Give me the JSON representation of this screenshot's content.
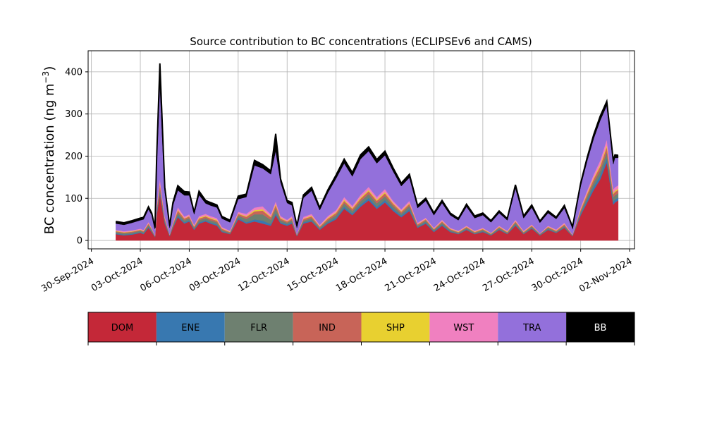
{
  "chart_data": {
    "type": "area",
    "stacked": true,
    "title": "Source contribution to BC concentrations (ECLIPSEv6 and CAMS)",
    "ylabel": "BC concentration (ng m",
    "ylabel_exponent": "−3",
    "ylabel_close": ")",
    "xlabel": "",
    "grid": true,
    "ylim": [
      -20,
      450
    ],
    "yticks": [
      0,
      100,
      200,
      300,
      400
    ],
    "ytick_labels": [
      "0",
      "100",
      "200",
      "300",
      "400"
    ],
    "xlim_days": [
      -0.2,
      33.3
    ],
    "xticks_days": [
      0,
      3,
      6,
      9,
      12,
      15,
      18,
      21,
      24,
      27,
      30,
      33
    ],
    "xtick_labels": [
      "30-Sep-2024",
      "03-Oct-2024",
      "06-Oct-2024",
      "09-Oct-2024",
      "12-Oct-2024",
      "15-Oct-2024",
      "18-Oct-2024",
      "21-Oct-2024",
      "24-Oct-2024",
      "27-Oct-2024",
      "30-Oct-2024",
      "02-Nov-2024"
    ],
    "x_days": [
      1.5,
      2.0,
      2.5,
      3.0,
      3.2,
      3.5,
      3.7,
      3.9,
      4.0,
      4.2,
      4.5,
      4.8,
      5.0,
      5.3,
      5.7,
      6.0,
      6.3,
      6.6,
      7.0,
      7.3,
      7.7,
      8.0,
      8.5,
      9.0,
      9.5,
      10.0,
      10.5,
      11.0,
      11.3,
      11.6,
      12.0,
      12.3,
      12.6,
      13.0,
      13.5,
      14.0,
      14.5,
      15.0,
      15.5,
      16.0,
      16.5,
      17.0,
      17.5,
      18.0,
      18.5,
      19.0,
      19.5,
      20.0,
      20.5,
      21.0,
      21.5,
      22.0,
      22.5,
      23.0,
      23.5,
      24.0,
      24.5,
      25.0,
      25.5,
      26.0,
      26.5,
      27.0,
      27.5,
      28.0,
      28.5,
      29.0,
      29.5,
      30.0,
      30.4,
      30.8,
      31.2,
      31.6,
      32.0,
      32.1,
      32.3
    ],
    "series": [
      {
        "name": "DOM",
        "color": "#C42838",
        "values": [
          15,
          12,
          14,
          18,
          15,
          30,
          20,
          8,
          60,
          110,
          40,
          10,
          30,
          55,
          40,
          45,
          25,
          40,
          45,
          40,
          35,
          20,
          15,
          50,
          40,
          45,
          40,
          35,
          60,
          40,
          35,
          40,
          10,
          40,
          45,
          25,
          40,
          50,
          75,
          60,
          80,
          95,
          75,
          90,
          70,
          55,
          70,
          30,
          40,
          20,
          35,
          20,
          15,
          25,
          15,
          20,
          12,
          25,
          15,
          35,
          15,
          28,
          12,
          25,
          18,
          30,
          10,
          60,
          90,
          120,
          145,
          185,
          85,
          90,
          95
        ]
      },
      {
        "name": "ENE",
        "color": "#3878B0",
        "values": [
          2,
          2,
          2,
          2,
          2,
          3,
          2,
          1,
          4,
          6,
          3,
          1,
          2,
          4,
          3,
          3,
          2,
          3,
          3,
          3,
          3,
          2,
          1,
          4,
          3,
          5,
          7,
          4,
          5,
          3,
          3,
          3,
          1,
          3,
          3,
          2,
          3,
          4,
          5,
          4,
          5,
          6,
          5,
          6,
          5,
          4,
          5,
          2,
          3,
          2,
          3,
          2,
          1,
          2,
          1,
          2,
          1,
          2,
          1,
          3,
          1,
          2,
          1,
          2,
          1,
          2,
          1,
          4,
          6,
          8,
          9,
          11,
          7,
          7,
          7
        ]
      },
      {
        "name": "FLR",
        "color": "#6E8070",
        "values": [
          3,
          3,
          3,
          3,
          3,
          4,
          3,
          1,
          6,
          8,
          5,
          2,
          4,
          6,
          5,
          5,
          3,
          5,
          5,
          5,
          5,
          3,
          2,
          5,
          8,
          12,
          15,
          10,
          12,
          5,
          4,
          5,
          2,
          4,
          5,
          3,
          5,
          6,
          8,
          6,
          8,
          9,
          8,
          9,
          7,
          5,
          7,
          3,
          4,
          3,
          4,
          3,
          2,
          3,
          2,
          3,
          2,
          3,
          2,
          4,
          2,
          3,
          2,
          3,
          2,
          3,
          1,
          5,
          8,
          10,
          12,
          14,
          10,
          10,
          10
        ]
      },
      {
        "name": "IND",
        "color": "#C86458",
        "values": [
          2,
          2,
          2,
          2,
          2,
          3,
          2,
          1,
          5,
          10,
          4,
          1,
          3,
          6,
          4,
          4,
          3,
          4,
          4,
          4,
          4,
          3,
          2,
          4,
          5,
          7,
          9,
          6,
          7,
          4,
          3,
          4,
          1,
          4,
          4,
          3,
          4,
          5,
          6,
          5,
          6,
          7,
          6,
          7,
          5,
          4,
          5,
          3,
          3,
          2,
          3,
          2,
          2,
          2,
          2,
          2,
          1,
          2,
          2,
          3,
          2,
          2,
          1,
          2,
          2,
          3,
          1,
          4,
          6,
          8,
          10,
          12,
          8,
          8,
          8
        ]
      },
      {
        "name": "SHP",
        "color": "#E8D030",
        "values": [
          1,
          1,
          1,
          1,
          1,
          1,
          1,
          0,
          2,
          3,
          1,
          0,
          1,
          2,
          1,
          1,
          1,
          2,
          2,
          2,
          2,
          1,
          1,
          1,
          2,
          3,
          3,
          2,
          3,
          2,
          1,
          2,
          0,
          1,
          2,
          1,
          2,
          2,
          3,
          2,
          3,
          3,
          3,
          3,
          2,
          2,
          2,
          1,
          1,
          1,
          1,
          1,
          1,
          1,
          1,
          1,
          1,
          1,
          1,
          1,
          1,
          1,
          0,
          1,
          1,
          1,
          0,
          2,
          3,
          3,
          4,
          5,
          3,
          3,
          3
        ]
      },
      {
        "name": "WST",
        "color": "#F080C0",
        "values": [
          2,
          2,
          2,
          2,
          2,
          3,
          2,
          1,
          5,
          10,
          4,
          1,
          3,
          6,
          4,
          4,
          3,
          4,
          4,
          4,
          4,
          3,
          2,
          4,
          5,
          6,
          7,
          5,
          6,
          4,
          3,
          4,
          1,
          4,
          4,
          3,
          4,
          5,
          6,
          5,
          6,
          7,
          6,
          7,
          5,
          4,
          5,
          3,
          3,
          2,
          3,
          2,
          2,
          2,
          2,
          2,
          1,
          2,
          2,
          3,
          2,
          2,
          1,
          2,
          2,
          3,
          1,
          4,
          6,
          8,
          10,
          13,
          8,
          8,
          8
        ]
      },
      {
        "name": "TRA",
        "color": "#9370DB",
        "values": [
          15,
          15,
          18,
          20,
          25,
          30,
          30,
          15,
          100,
          220,
          60,
          15,
          40,
          40,
          50,
          45,
          25,
          50,
          25,
          25,
          25,
          20,
          20,
          30,
          40,
          100,
          90,
          95,
          120,
          80,
          40,
          25,
          15,
          45,
          55,
          35,
          55,
          75,
          80,
          70,
          85,
          85,
          80,
          80,
          70,
          55,
          55,
          35,
          40,
          30,
          40,
          30,
          25,
          45,
          30,
          30,
          25,
          30,
          25,
          75,
          30,
          40,
          25,
          30,
          25,
          35,
          15,
          50,
          70,
          85,
          95,
          80,
          60,
          70,
          65
        ]
      },
      {
        "name": "BB",
        "color": "#000000",
        "values": [
          5,
          5,
          5,
          5,
          5,
          6,
          5,
          3,
          13,
          53,
          9,
          5,
          7,
          11,
          9,
          8,
          5,
          9,
          7,
          7,
          6,
          5,
          5,
          7,
          7,
          12,
          9,
          8,
          40,
          8,
          6,
          7,
          5,
          7,
          8,
          6,
          7,
          8,
          10,
          9,
          10,
          10,
          9,
          10,
          8,
          7,
          8,
          6,
          6,
          5,
          6,
          5,
          4,
          6,
          5,
          5,
          4,
          5,
          4,
          8,
          5,
          6,
          4,
          5,
          4,
          6,
          3,
          7,
          8,
          9,
          10,
          10,
          8,
          7,
          6
        ]
      }
    ],
    "legend": [
      "DOM",
      "ENE",
      "FLR",
      "IND",
      "SHP",
      "WST",
      "TRA",
      "BB"
    ],
    "legend_placement": "bottom"
  }
}
